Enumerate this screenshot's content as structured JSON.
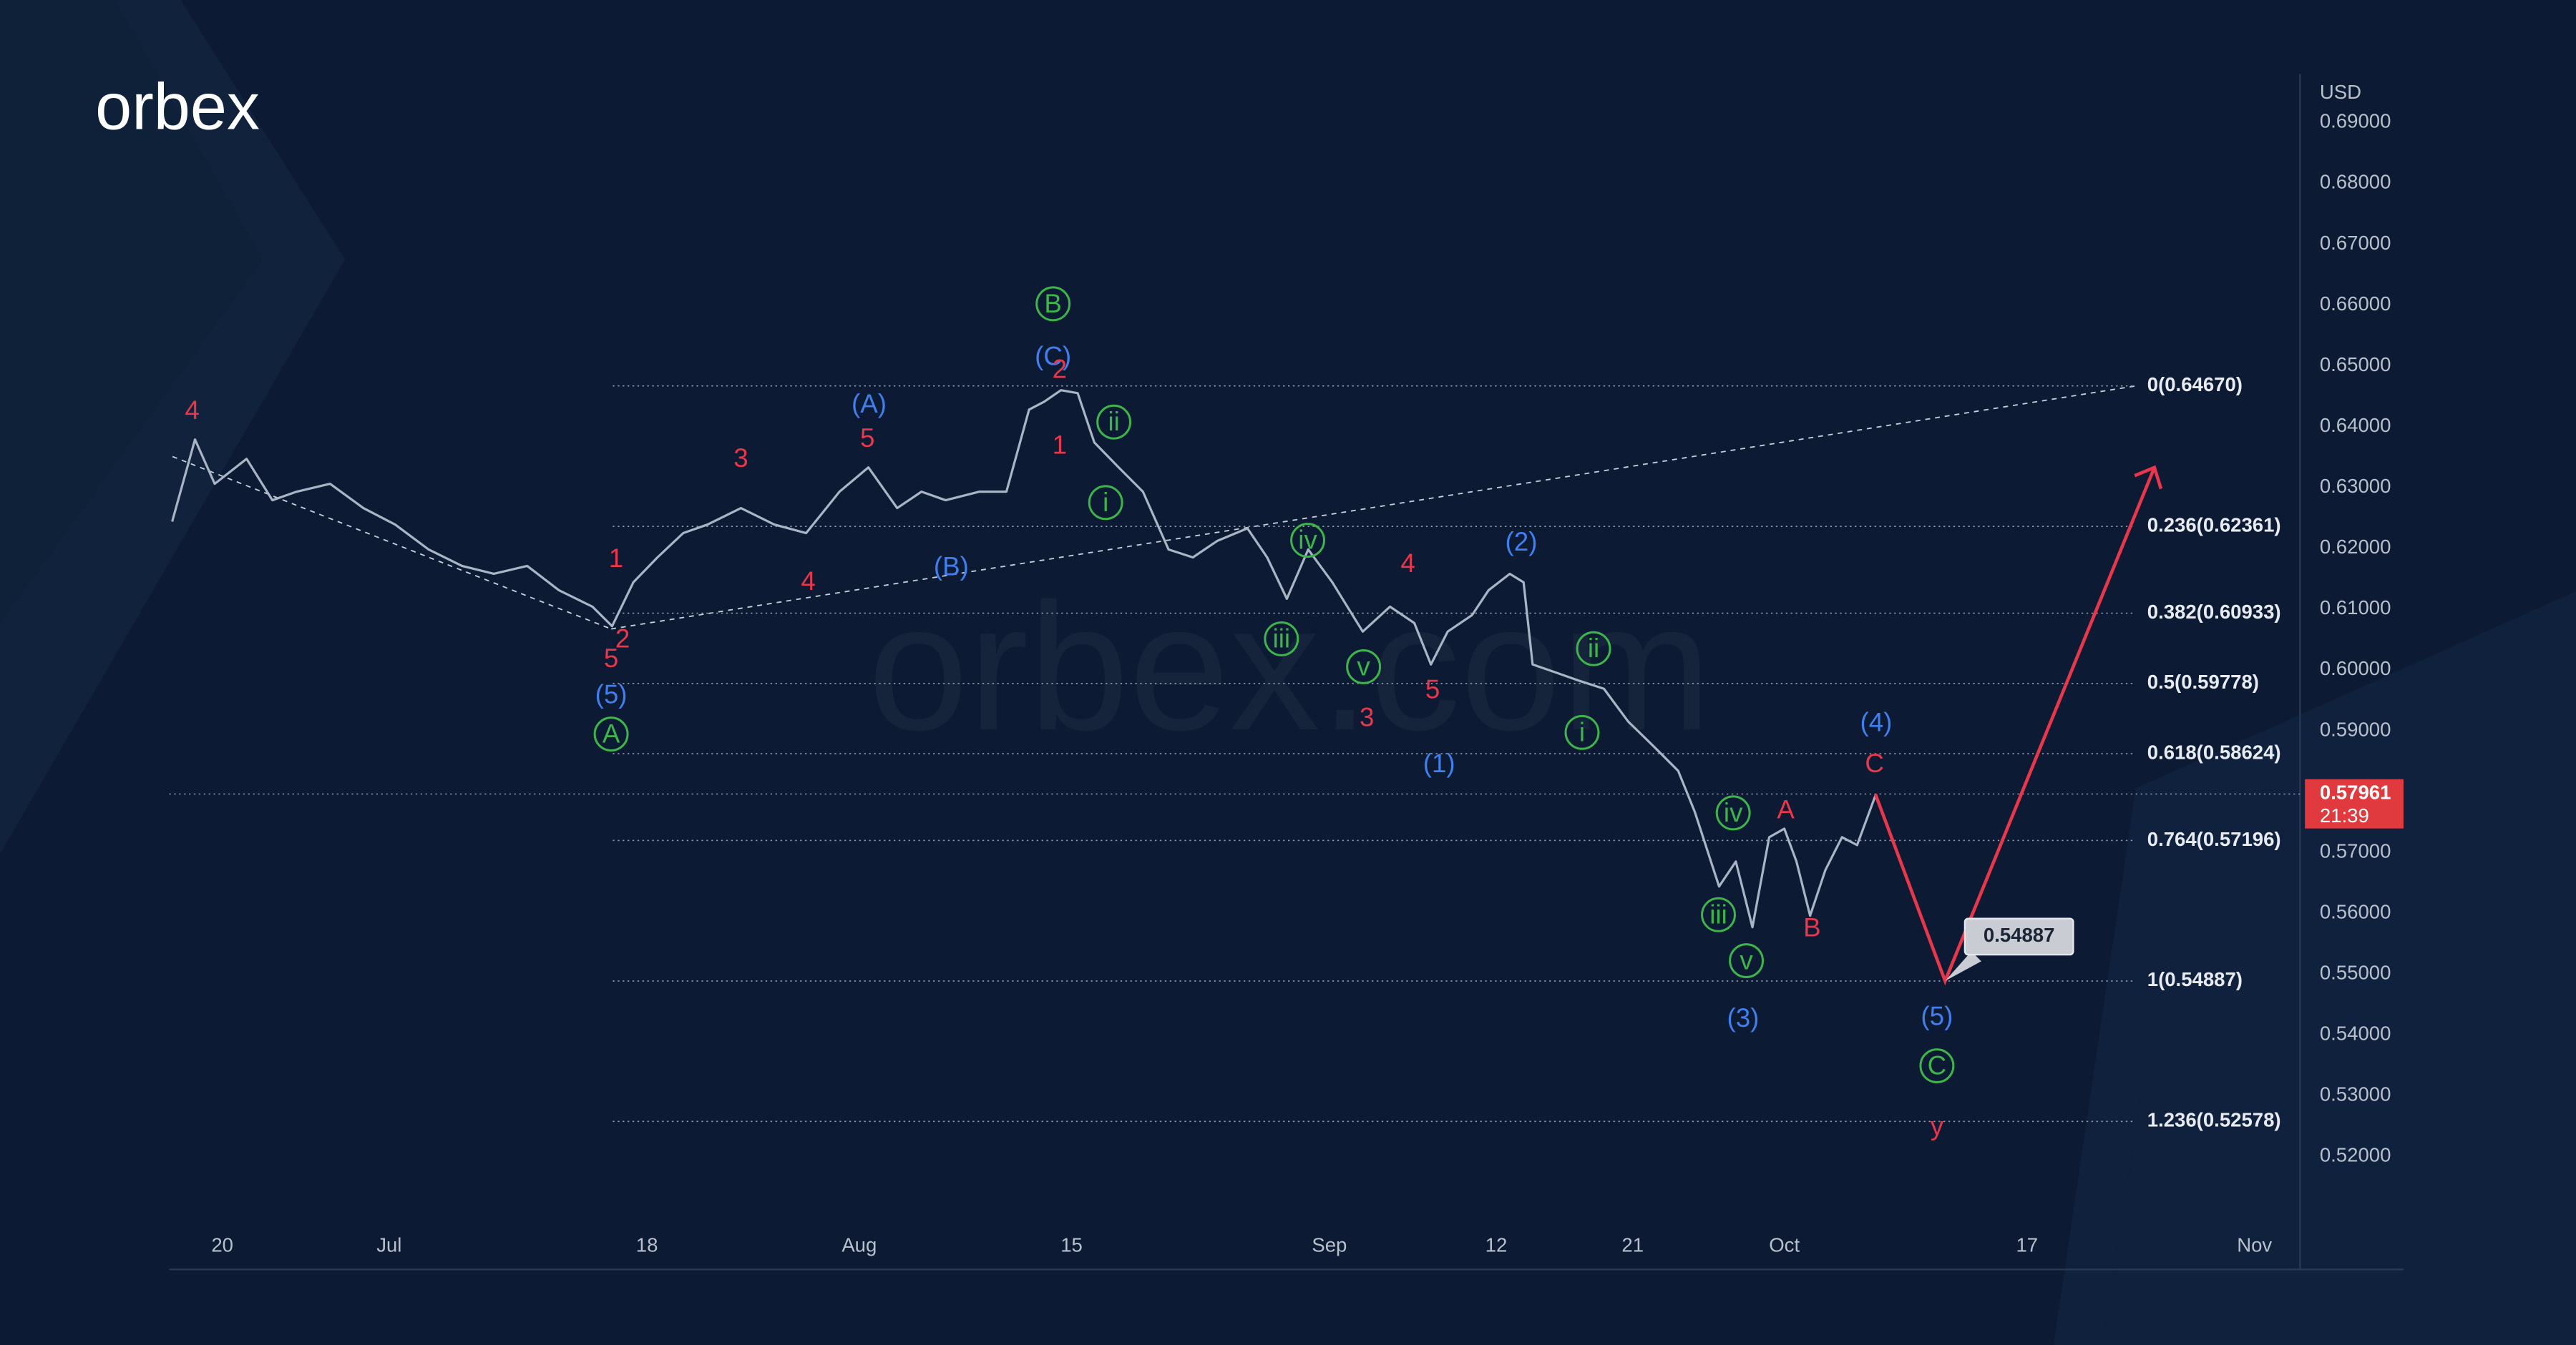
{
  "logo": "orbex",
  "watermark": "orbex.com",
  "chart_data": {
    "type": "line",
    "currency": "USD",
    "color": "#a9b4c4",
    "grid": false,
    "xlim": [
      167.5,
      308
    ],
    "ylim": [
      0.509,
      0.698
    ],
    "xticks": [
      {
        "value": 171,
        "label": "20"
      },
      {
        "value": 182,
        "label": "Jul"
      },
      {
        "value": 199,
        "label": "18"
      },
      {
        "value": 213,
        "label": "Aug"
      },
      {
        "value": 227,
        "label": "15"
      },
      {
        "value": 244,
        "label": "Sep"
      },
      {
        "value": 255,
        "label": "12"
      },
      {
        "value": 264,
        "label": "21"
      },
      {
        "value": 274,
        "label": "Oct"
      },
      {
        "value": 290,
        "label": "17"
      },
      {
        "value": 305,
        "label": "Nov"
      }
    ],
    "yticks": [
      {
        "value": 0.69,
        "label": "0.69000"
      },
      {
        "value": 0.68,
        "label": "0.68000"
      },
      {
        "value": 0.67,
        "label": "0.67000"
      },
      {
        "value": 0.66,
        "label": "0.66000"
      },
      {
        "value": 0.65,
        "label": "0.65000"
      },
      {
        "value": 0.64,
        "label": "0.64000"
      },
      {
        "value": 0.63,
        "label": "0.63000"
      },
      {
        "value": 0.62,
        "label": "0.62000"
      },
      {
        "value": 0.61,
        "label": "0.61000"
      },
      {
        "value": 0.6,
        "label": "0.60000"
      },
      {
        "value": 0.59,
        "label": "0.59000"
      },
      {
        "value": 0.57,
        "label": "0.57000"
      },
      {
        "value": 0.56,
        "label": "0.56000"
      },
      {
        "value": 0.55,
        "label": "0.55000"
      },
      {
        "value": 0.54,
        "label": "0.54000"
      },
      {
        "value": 0.53,
        "label": "0.53000"
      },
      {
        "value": 0.52,
        "label": "0.52000"
      }
    ],
    "x": [
      167.7,
      169.2,
      170.5,
      172.6,
      174.3,
      175.9,
      178.1,
      180.3,
      182.4,
      184.6,
      186.8,
      188.9,
      191.1,
      193.2,
      195.4,
      196.7,
      198.1,
      199.7,
      201.4,
      203.0,
      205.2,
      207.4,
      209.5,
      211.7,
      213.6,
      215.5,
      217.1,
      218.7,
      220.9,
      222.7,
      224.2,
      225.2,
      226.3,
      227.4,
      228.5,
      230.1,
      231.7,
      233.4,
      235.0,
      236.6,
      238.6,
      239.9,
      241.2,
      242.6,
      244.2,
      246.2,
      248.0,
      249.6,
      250.7,
      251.8,
      253.4,
      254.5,
      255.9,
      256.8,
      257.4,
      258.9,
      260.5,
      262.1,
      263.7,
      265.4,
      267.0,
      268.1,
      269.7,
      270.8,
      271.9,
      273.0,
      274.0,
      274.8,
      275.7,
      276.7,
      277.8,
      278.8,
      280.0
    ],
    "values": [
      0.6244,
      0.6379,
      0.6306,
      0.6347,
      0.6279,
      0.6293,
      0.6306,
      0.6266,
      0.6239,
      0.6198,
      0.6171,
      0.6158,
      0.6171,
      0.6131,
      0.6104,
      0.6072,
      0.6144,
      0.6185,
      0.6225,
      0.6239,
      0.6266,
      0.6239,
      0.6225,
      0.6293,
      0.6333,
      0.6266,
      0.6293,
      0.6279,
      0.6293,
      0.6293,
      0.6428,
      0.6441,
      0.646,
      0.6455,
      0.6374,
      0.6333,
      0.6293,
      0.6198,
      0.6185,
      0.6212,
      0.6233,
      0.6185,
      0.6117,
      0.6198,
      0.6144,
      0.6063,
      0.6104,
      0.6077,
      0.6009,
      0.6063,
      0.609,
      0.6131,
      0.6158,
      0.6144,
      0.6009,
      0.5996,
      0.5982,
      0.5969,
      0.5915,
      0.5874,
      0.5834,
      0.5766,
      0.5644,
      0.5685,
      0.5577,
      0.5725,
      0.5739,
      0.5685,
      0.5596,
      0.5671,
      0.5725,
      0.5712,
      0.5793
    ],
    "fib_levels": [
      {
        "value": 0.6467,
        "label": "0(0.64670)"
      },
      {
        "value": 0.62361,
        "label": "0.236(0.62361)"
      },
      {
        "value": 0.60933,
        "label": "0.382(0.60933)"
      },
      {
        "value": 0.59778,
        "label": "0.5(0.59778)"
      },
      {
        "value": 0.58624,
        "label": "0.618(0.58624)"
      },
      {
        "value": 0.57196,
        "label": "0.764(0.57196)"
      },
      {
        "value": 0.54887,
        "label": "1(0.54887)"
      },
      {
        "value": 0.52578,
        "label": "1.236(0.52578)"
      }
    ],
    "last_price": 0.57961,
    "countdown": "21:39",
    "target": 0.54887,
    "projection": {
      "x": [
        280.0,
        284.6,
        298.4
      ],
      "values": [
        0.5796,
        0.54887,
        0.6333
      ]
    }
  },
  "annotations": [
    "4",
    "1",
    "2",
    "5",
    "(5)",
    "A",
    "3",
    "4",
    "5",
    "(A)",
    "(B)",
    "B",
    "(C)",
    "2",
    "1",
    "ii",
    "i",
    "iv",
    "iii",
    "v",
    "4",
    "3",
    "5",
    "(1)",
    "(2)",
    "ii",
    "i",
    "iv",
    "iii",
    "v",
    "(3)",
    "A",
    "B",
    "(4)",
    "C",
    "(5)",
    "C",
    "y"
  ]
}
